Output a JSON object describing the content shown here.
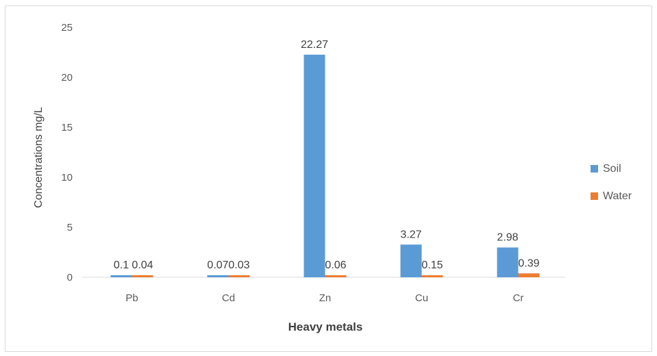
{
  "chart_data": {
    "type": "bar",
    "categories": [
      "Pb",
      "Cd",
      "Zn",
      "Cu",
      "Cr"
    ],
    "series": [
      {
        "name": "Soil",
        "color": "#5b9bd5",
        "values": [
          0.1,
          0.07,
          22.27,
          3.27,
          2.98
        ],
        "labels": [
          "0.1",
          "0.07",
          "22.27",
          "3.27",
          "2.98"
        ]
      },
      {
        "name": "Water",
        "color": "#ed7d31",
        "values": [
          0.04,
          0.03,
          0.06,
          0.15,
          0.39
        ],
        "labels": [
          "0.04",
          "0.03",
          "0.06",
          "0.15",
          "0.39"
        ]
      }
    ],
    "xlabel": "Heavy metals",
    "ylabel": "Concentrations mg/L",
    "ylim": [
      0,
      25
    ],
    "yticks": [
      "0",
      "5",
      "10",
      "15",
      "20",
      "25"
    ],
    "grid": false,
    "legend": "right"
  }
}
